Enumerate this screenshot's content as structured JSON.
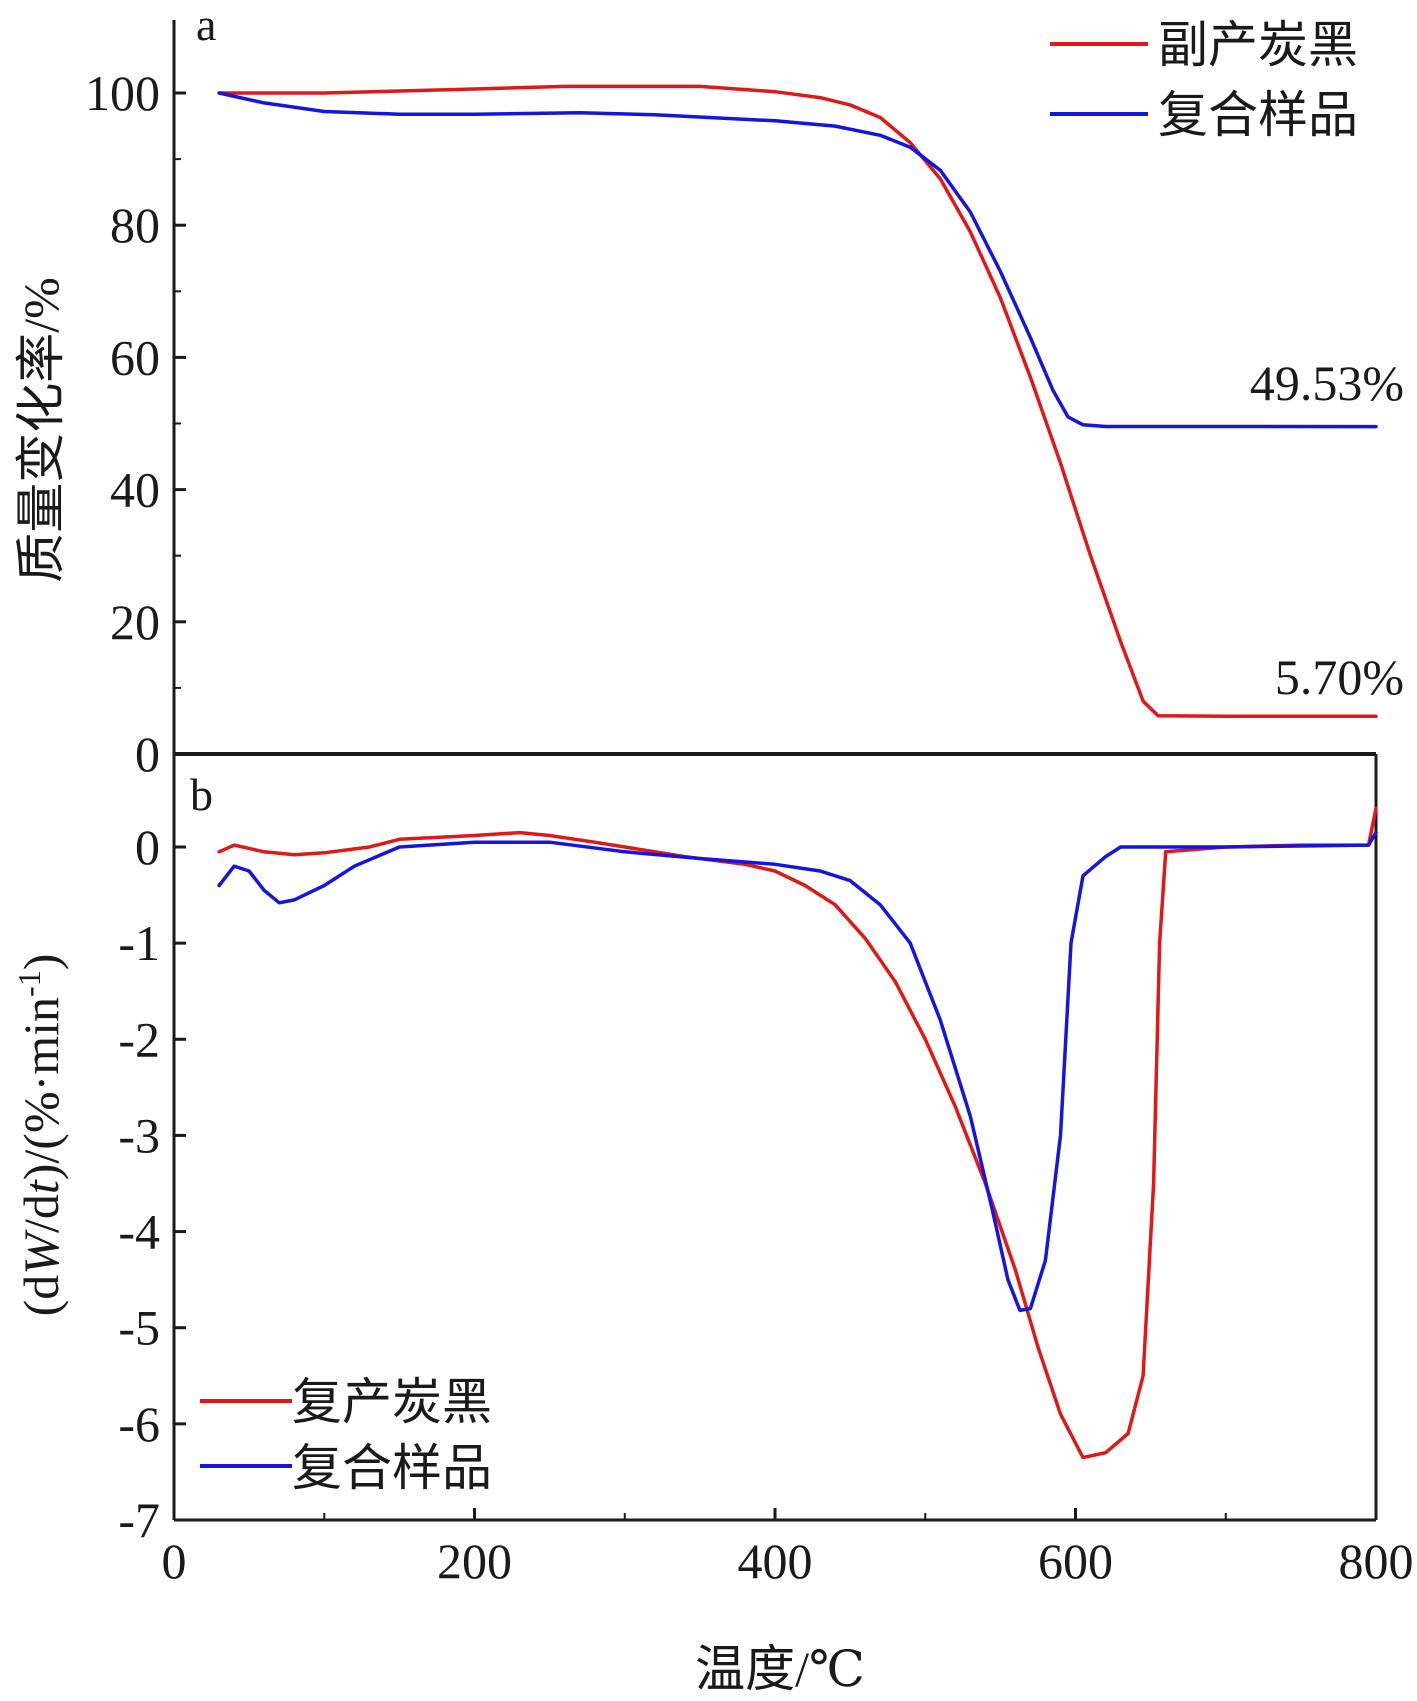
{
  "chart_data": [
    {
      "panel": "a",
      "type": "line",
      "ylabel": "质量变化率/%",
      "xlabel": "温度/℃",
      "xlim": [
        0,
        800
      ],
      "ylim": [
        0,
        110
      ],
      "x_ticks": [
        0,
        200,
        400,
        600,
        800
      ],
      "y_ticks": [
        0,
        20,
        40,
        60,
        80,
        100
      ],
      "legend": {
        "placement": "top-right",
        "entries": [
          "副产炭黑",
          "复合样品"
        ]
      },
      "series": [
        {
          "name": "副产炭黑",
          "color": "#e01818",
          "points": [
            [
              30,
              100
            ],
            [
              100,
              100
            ],
            [
              200,
              100.6
            ],
            [
              260,
              101
            ],
            [
              350,
              101
            ],
            [
              400,
              100.2
            ],
            [
              430,
              99.3
            ],
            [
              450,
              98.2
            ],
            [
              470,
              96.3
            ],
            [
              490,
              92.5
            ],
            [
              510,
              87
            ],
            [
              530,
              79
            ],
            [
              550,
              69
            ],
            [
              570,
              57
            ],
            [
              590,
              44
            ],
            [
              610,
              30
            ],
            [
              630,
              17
            ],
            [
              645,
              8
            ],
            [
              655,
              5.8
            ],
            [
              700,
              5.7
            ],
            [
              800,
              5.7
            ]
          ]
        },
        {
          "name": "复合样品",
          "color": "#1515e0",
          "points": [
            [
              30,
              100
            ],
            [
              60,
              98.5
            ],
            [
              100,
              97.2
            ],
            [
              150,
              96.8
            ],
            [
              200,
              96.8
            ],
            [
              270,
              97
            ],
            [
              320,
              96.7
            ],
            [
              400,
              95.8
            ],
            [
              440,
              95
            ],
            [
              470,
              93.6
            ],
            [
              490,
              91.8
            ],
            [
              510,
              88.3
            ],
            [
              530,
              82
            ],
            [
              550,
              73
            ],
            [
              570,
              63
            ],
            [
              585,
              55
            ],
            [
              595,
              51
            ],
            [
              605,
              49.8
            ],
            [
              620,
              49.55
            ],
            [
              800,
              49.53
            ]
          ]
        }
      ],
      "annotations": [
        "49.53%",
        "5.70%"
      ]
    },
    {
      "panel": "b",
      "type": "line",
      "ylabel": "(dW/dt)/(%·min-1)",
      "xlabel": "温度/℃",
      "xlim": [
        0,
        800
      ],
      "ylim": [
        -7,
        0.8
      ],
      "x_ticks": [
        0,
        200,
        400,
        600,
        800
      ],
      "y_ticks": [
        0,
        -1,
        -2,
        -3,
        -4,
        -5,
        -6,
        -7
      ],
      "legend": {
        "placement": "bottom-left",
        "entries": [
          "复产炭黑",
          "复合样品"
        ]
      },
      "series": [
        {
          "name": "复产炭黑",
          "color": "#e01818",
          "points": [
            [
              30,
              -0.05
            ],
            [
              40,
              0.02
            ],
            [
              60,
              -0.05
            ],
            [
              80,
              -0.08
            ],
            [
              100,
              -0.06
            ],
            [
              130,
              0
            ],
            [
              150,
              0.08
            ],
            [
              200,
              0.12
            ],
            [
              230,
              0.15
            ],
            [
              250,
              0.12
            ],
            [
              280,
              0.05
            ],
            [
              300,
              0
            ],
            [
              340,
              -0.1
            ],
            [
              380,
              -0.18
            ],
            [
              400,
              -0.25
            ],
            [
              420,
              -0.4
            ],
            [
              440,
              -0.6
            ],
            [
              460,
              -0.95
            ],
            [
              480,
              -1.4
            ],
            [
              500,
              -2
            ],
            [
              520,
              -2.7
            ],
            [
              540,
              -3.5
            ],
            [
              560,
              -4.4
            ],
            [
              575,
              -5.2
            ],
            [
              590,
              -5.9
            ],
            [
              605,
              -6.35
            ],
            [
              620,
              -6.3
            ],
            [
              635,
              -6.1
            ],
            [
              645,
              -5.5
            ],
            [
              652,
              -3.5
            ],
            [
              656,
              -1.0
            ],
            [
              660,
              -0.05
            ],
            [
              700,
              0
            ],
            [
              750,
              0.02
            ],
            [
              795,
              0.02
            ],
            [
              800,
              0.4
            ]
          ]
        },
        {
          "name": "复合样品",
          "color": "#1515e0",
          "points": [
            [
              30,
              -0.4
            ],
            [
              40,
              -0.2
            ],
            [
              50,
              -0.25
            ],
            [
              60,
              -0.45
            ],
            [
              70,
              -0.58
            ],
            [
              80,
              -0.55
            ],
            [
              100,
              -0.4
            ],
            [
              120,
              -0.2
            ],
            [
              150,
              0
            ],
            [
              200,
              0.05
            ],
            [
              250,
              0.05
            ],
            [
              300,
              -0.05
            ],
            [
              350,
              -0.12
            ],
            [
              400,
              -0.18
            ],
            [
              430,
              -0.25
            ],
            [
              450,
              -0.35
            ],
            [
              470,
              -0.6
            ],
            [
              490,
              -1.0
            ],
            [
              510,
              -1.8
            ],
            [
              530,
              -2.8
            ],
            [
              545,
              -3.8
            ],
            [
              555,
              -4.5
            ],
            [
              563,
              -4.82
            ],
            [
              570,
              -4.8
            ],
            [
              580,
              -4.3
            ],
            [
              590,
              -3.0
            ],
            [
              597,
              -1.0
            ],
            [
              605,
              -0.3
            ],
            [
              620,
              -0.1
            ],
            [
              630,
              0
            ],
            [
              700,
              0
            ],
            [
              795,
              0.02
            ],
            [
              800,
              0.15
            ]
          ]
        }
      ]
    }
  ]
}
